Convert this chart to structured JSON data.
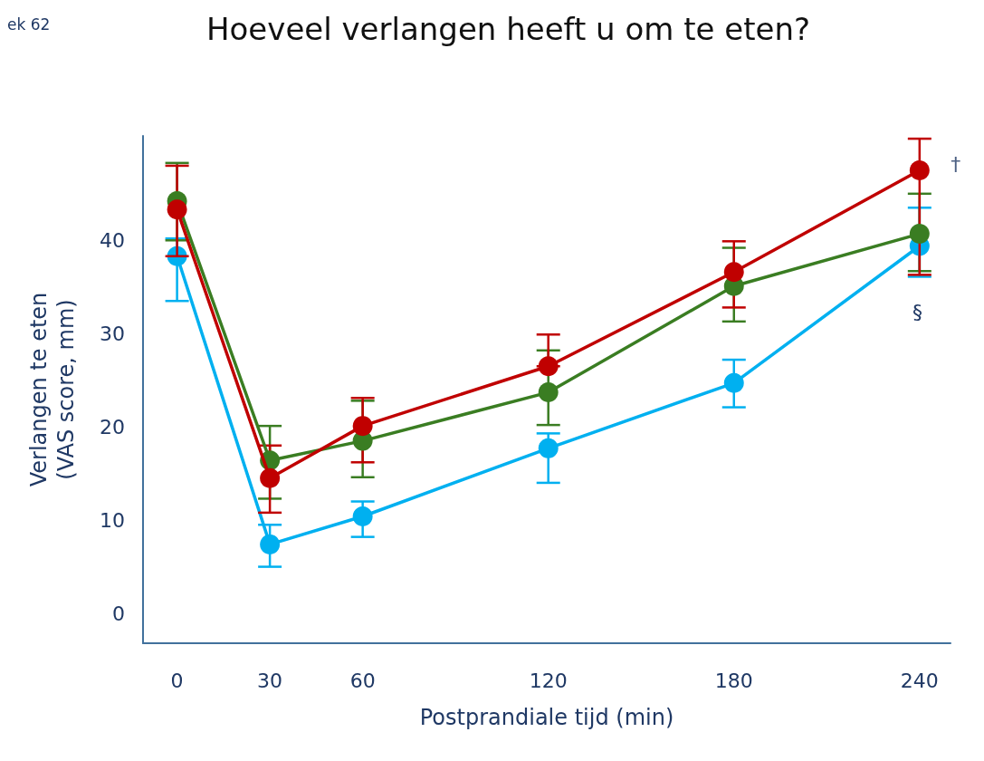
{
  "chart_data": {
    "type": "line",
    "title": "Hoeveel verlangen heeft u om te eten?",
    "xlabel": "Postprandiale tijd (min)",
    "ylabel": "Verlangen te eten\n(VAS score, mm)",
    "x": [
      0,
      30,
      60,
      120,
      180,
      240
    ],
    "xlim": [
      -11,
      250
    ],
    "xticks": [
      0,
      30,
      60,
      120,
      180,
      240
    ],
    "ylim": [
      -3.2,
      51.2
    ],
    "yticks": [
      0,
      10,
      20,
      30,
      40
    ],
    "marker": "circle",
    "grid": false,
    "series": [
      {
        "color": "#00b0f0",
        "values": [
          38.3,
          7.4,
          10.4,
          17.7,
          24.7,
          39.4
        ],
        "errors": [
          [
            33.5,
            40.2
          ],
          [
            5.0,
            9.5
          ],
          [
            8.2,
            12.0
          ],
          [
            14.0,
            19.3
          ],
          [
            22.1,
            27.2
          ],
          [
            36.1,
            43.5
          ]
        ]
      },
      {
        "color": "#3a7d22",
        "values": [
          44.2,
          16.4,
          18.5,
          23.7,
          35.1,
          40.7
        ],
        "errors": [
          [
            40.0,
            48.3
          ],
          [
            12.3,
            20.1
          ],
          [
            14.6,
            22.8
          ],
          [
            20.2,
            28.2
          ],
          [
            31.3,
            39.2
          ],
          [
            36.7,
            45.0
          ]
        ]
      },
      {
        "color": "#c00000",
        "values": [
          43.3,
          14.5,
          20.1,
          26.5,
          36.6,
          47.5
        ],
        "errors": [
          [
            38.3,
            48.0
          ],
          [
            10.8,
            18.0
          ],
          [
            16.2,
            23.1
          ],
          [
            26.5,
            29.9
          ],
          [
            32.8,
            39.9
          ],
          [
            36.3,
            50.9
          ]
        ]
      }
    ],
    "annotations": [
      "ek 62",
      {
        "text": "†",
        "x": 240,
        "y": 48.1
      },
      "§"
    ]
  }
}
